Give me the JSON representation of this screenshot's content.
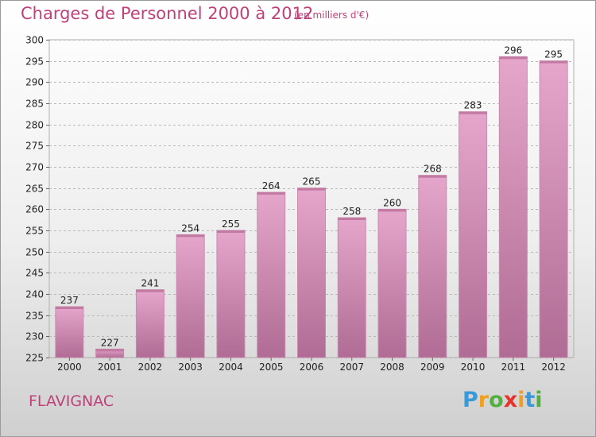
{
  "chart_data": {
    "type": "bar",
    "title": "Charges de Personnel 2000 à 2012",
    "subtitle": "(en milliers d'€)",
    "categories": [
      "2000",
      "2001",
      "2002",
      "2003",
      "2004",
      "2005",
      "2006",
      "2007",
      "2008",
      "2009",
      "2010",
      "2011",
      "2012"
    ],
    "values": [
      237,
      227,
      241,
      254,
      255,
      264,
      265,
      258,
      260,
      268,
      283,
      296,
      295
    ],
    "ylim": [
      225,
      300
    ],
    "yticks": [
      225,
      230,
      235,
      240,
      245,
      250,
      255,
      260,
      265,
      270,
      275,
      280,
      285,
      290,
      295,
      300
    ],
    "grid": true,
    "bar_color": "#d98ab4",
    "title_color": "#c0417a"
  },
  "footer": {
    "city": "FLAVIGNAC",
    "logo": {
      "letters": [
        "P",
        "r",
        "o",
        "x",
        "i",
        "t",
        "i"
      ],
      "colors": [
        "#3a9ad9",
        "#f0a020",
        "#52b043",
        "#e8332a",
        "#f0a020",
        "#3a9ad9",
        "#52b043"
      ]
    }
  }
}
